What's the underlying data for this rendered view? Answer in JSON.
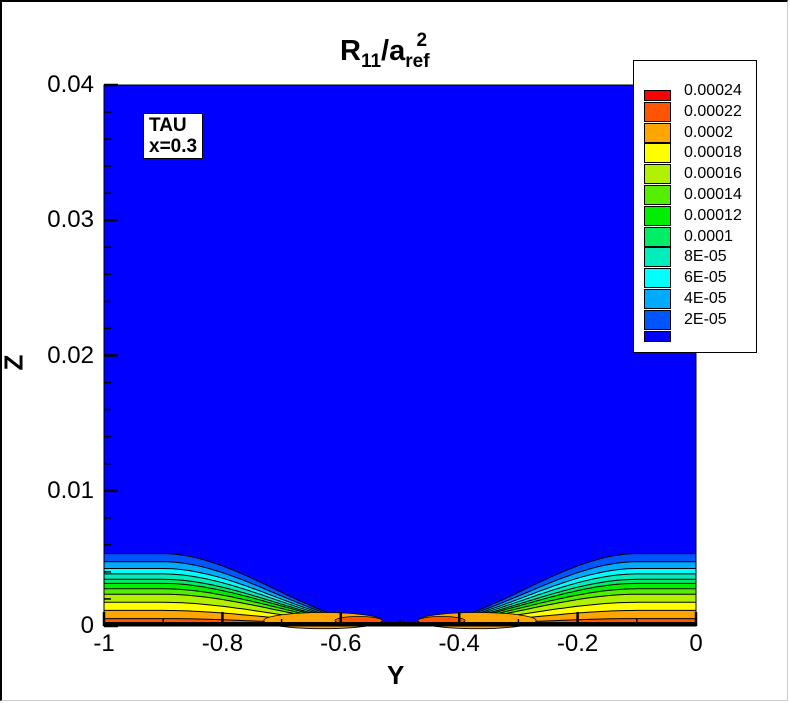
{
  "chart_data": {
    "type": "heatmap",
    "subtype": "filled-contour",
    "title": "R11/aref^2",
    "title_parts": {
      "base": "R",
      "sub1": "11",
      "mid": "/a",
      "sub2": "ref",
      "sup": "2"
    },
    "xlabel": "Y",
    "ylabel": "Z",
    "xlim": [
      -1,
      0
    ],
    "ylim": [
      0,
      0.04
    ],
    "x_ticks": [
      "-1",
      "-0.8",
      "-0.6",
      "-0.4",
      "-0.2",
      "0"
    ],
    "y_ticks": [
      "0",
      "0.01",
      "0.02",
      "0.03",
      "0.04"
    ],
    "annotation": [
      "TAU",
      "x=0.3"
    ],
    "legend": {
      "position": "top-right",
      "levels": [
        {
          "label": "0.00024",
          "color": "#ff0000"
        },
        {
          "label": "0.00022",
          "color": "#ff5500"
        },
        {
          "label": "0.0002",
          "color": "#ffa500"
        },
        {
          "label": "0.00018",
          "color": "#ffff00"
        },
        {
          "label": "0.00016",
          "color": "#b0f000"
        },
        {
          "label": "0.00014",
          "color": "#55ee00"
        },
        {
          "label": "0.00012",
          "color": "#00ee00"
        },
        {
          "label": "0.0001",
          "color": "#00ee66"
        },
        {
          "label": "8E-05",
          "color": "#00eebb"
        },
        {
          "label": "6E-05",
          "color": "#00ffff"
        },
        {
          "label": "4E-05",
          "color": "#00aaff"
        },
        {
          "label": "2E-05",
          "color": "#0055ff"
        }
      ],
      "lowest_color": "#0000ff"
    },
    "field_description": "Background value below 2E-05 (blue) above Z≈0.005; layered boundary-layer bands at both edges (Y=-1 and Y=0) thinning to zero near Y=-0.5; peak values 0.0002-0.00024 near Z≈0 around Y≈-0.62 to -0.38",
    "edge_band_tops_Z": [
      0.0053,
      0.0047,
      0.0042,
      0.0038,
      0.0034,
      0.0031,
      0.0027,
      0.0023,
      0.0017,
      0.0011,
      0.0005
    ]
  }
}
